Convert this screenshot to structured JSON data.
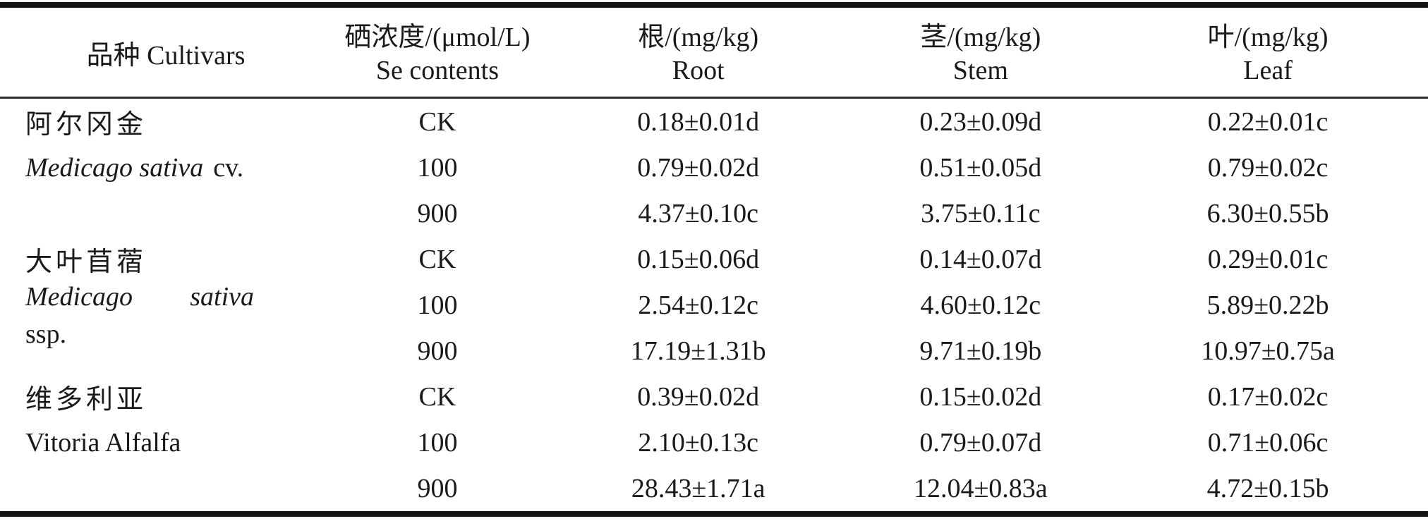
{
  "header": {
    "col1": "品种 Cultivars",
    "col2": {
      "line1": "硒浓度/(μmol/L)",
      "line2": "Se contents"
    },
    "col3": {
      "line1": "根/(mg/kg)",
      "line2": "Root"
    },
    "col4": {
      "line1": "茎/(mg/kg)",
      "line2": "Stem"
    },
    "col5": {
      "line1": "叶/(mg/kg)",
      "line2": "Leaf"
    }
  },
  "blocks": [
    {
      "cultivar": {
        "zh": "阿尔冈金",
        "latin_italic": "Medicago sativa",
        "latin_roman": "cv."
      },
      "rows": [
        {
          "se": "CK",
          "root": "0.18±0.01d",
          "stem": "0.23±0.09d",
          "leaf": "0.22±0.01c"
        },
        {
          "se": "100",
          "root": "0.79±0.02d",
          "stem": "0.51±0.05d",
          "leaf": "0.79±0.02c"
        },
        {
          "se": "900",
          "root": "4.37±0.10c",
          "stem": "3.75±0.11c",
          "leaf": "6.30±0.55b"
        }
      ]
    },
    {
      "cultivar": {
        "zh": "大叶苜蓿",
        "latin_word1": "Medicago",
        "latin_word2": "sativa",
        "latin_line2": "ssp."
      },
      "rows": [
        {
          "se": "CK",
          "root": "0.15±0.06d",
          "stem": "0.14±0.07d",
          "leaf": "0.29±0.01c"
        },
        {
          "se": "100",
          "root": "2.54±0.12c",
          "stem": "4.60±0.12c",
          "leaf": "5.89±0.22b"
        },
        {
          "se": "900",
          "root": "17.19±1.31b",
          "stem": "9.71±0.19b",
          "leaf": "10.97±0.75a"
        }
      ]
    },
    {
      "cultivar": {
        "zh": "维多利亚",
        "en": "Vitoria Alfalfa"
      },
      "rows": [
        {
          "se": "CK",
          "root": "0.39±0.02d",
          "stem": "0.15±0.02d",
          "leaf": "0.17±0.02c"
        },
        {
          "se": "100",
          "root": "2.10±0.13c",
          "stem": "0.79±0.07d",
          "leaf": "0.71±0.06c"
        },
        {
          "se": "900",
          "root": "28.43±1.71a",
          "stem": "12.04±0.83a",
          "leaf": "4.72±0.15b"
        }
      ]
    }
  ],
  "colors": {
    "text": "#1a1a1a",
    "rule": "#141414",
    "background": "#ffffff"
  }
}
